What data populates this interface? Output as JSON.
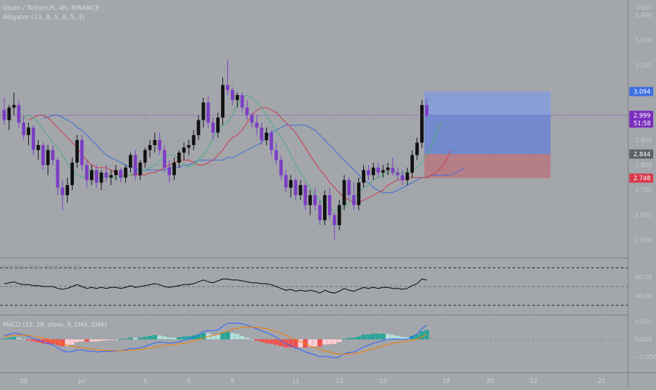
{
  "header": {
    "symbol_line": "Qtum / TetherUS, 4h, BINANCE",
    "indicator_line": "Alligator (13, 8, 5, 8, 5, 3)"
  },
  "price_axis": {
    "currency": "USDT",
    "ticks": [
      {
        "label": "3.400",
        "value": 3.4
      },
      {
        "label": "3.300",
        "value": 3.3
      },
      {
        "label": "3.200",
        "value": 3.2
      },
      {
        "label": "2.900",
        "value": 2.9
      },
      {
        "label": "2.800",
        "value": 2.8
      },
      {
        "label": "2.700",
        "value": 2.7
      },
      {
        "label": "2.600",
        "value": 2.6
      },
      {
        "label": "2.500",
        "value": 2.5
      }
    ],
    "badges": [
      {
        "label": "3.094",
        "value": 3.094,
        "color": "#3d6fe0",
        "countdown": ""
      },
      {
        "label": "2.999",
        "value": 2.999,
        "color": "#7b2fbe",
        "countdown": "51:58"
      },
      {
        "label": "2.844",
        "value": 2.844,
        "color": "#5d6066",
        "countdown": ""
      },
      {
        "label": "2.748",
        "value": 2.748,
        "color": "#d83a4c",
        "countdown": ""
      }
    ]
  },
  "position": {
    "entry": 2.844,
    "target": 3.094,
    "stop": 2.748,
    "profit_color": "#4b72e6",
    "loss_color": "#c8545f"
  },
  "rsi": {
    "title": "RSI (30, RMA, SMA, 14, 2)",
    "ticks": [
      {
        "label": "60.00",
        "value": 60
      },
      {
        "label": "40.00",
        "value": 40
      }
    ],
    "upper": 70,
    "middle": 50,
    "lower": 30
  },
  "macd": {
    "title": "MACD (12, 26, close, 9, EMA, EMA)",
    "ticks": [
      {
        "label": "0.050",
        "value": 0.05
      },
      {
        "label": "0.000",
        "value": 0
      },
      {
        "label": "−0.050",
        "value": -0.05
      }
    ]
  },
  "time_axis": {
    "ticks": [
      {
        "label": "29",
        "bar": 4
      },
      {
        "label": "Jul",
        "bar": 16
      },
      {
        "label": "4",
        "bar": 29
      },
      {
        "label": "6",
        "bar": 38
      },
      {
        "label": "8",
        "bar": 47
      },
      {
        "label": "11",
        "bar": 60
      },
      {
        "label": "13",
        "bar": 69
      },
      {
        "label": "15",
        "bar": 78
      },
      {
        "label": "18",
        "bar": 91
      },
      {
        "label": "20",
        "bar": 100
      },
      {
        "label": "22",
        "bar": 109
      },
      {
        "label": "25",
        "bar": 123
      }
    ]
  },
  "chart_data": {
    "type": "candlestick",
    "title": "Qtum / TetherUS, 4h, BINANCE",
    "ylim": [
      2.43,
      3.46
    ],
    "colors": {
      "up": "#111111",
      "down": "#7b3fc4",
      "jaw": "#3a6fd8",
      "teeth": "#d03a4a",
      "lips": "#4caf7a",
      "rsi": "#000000",
      "macd": "#2962ff",
      "signal": "#f57c00",
      "hist_pos": "#26a69a",
      "hist_pos_weak": "#b2dfdb",
      "hist_neg": "#ef5350",
      "hist_neg_weak": "#ffcdd2"
    },
    "candles": [
      [
        3.02,
        3.07,
        2.96,
        2.98
      ],
      [
        2.98,
        3.04,
        2.94,
        3.03
      ],
      [
        3.03,
        3.09,
        3.0,
        3.04
      ],
      [
        3.04,
        3.06,
        2.95,
        2.97
      ],
      [
        2.97,
        3.0,
        2.9,
        2.92
      ],
      [
        2.92,
        2.97,
        2.88,
        2.95
      ],
      [
        2.95,
        2.96,
        2.84,
        2.86
      ],
      [
        2.86,
        2.9,
        2.82,
        2.88
      ],
      [
        2.88,
        2.89,
        2.78,
        2.8
      ],
      [
        2.8,
        2.88,
        2.76,
        2.86
      ],
      [
        2.86,
        2.88,
        2.8,
        2.82
      ],
      [
        2.82,
        2.83,
        2.68,
        2.71
      ],
      [
        2.71,
        2.74,
        2.62,
        2.68
      ],
      [
        2.68,
        2.75,
        2.65,
        2.72
      ],
      [
        2.72,
        2.83,
        2.7,
        2.81
      ],
      [
        2.81,
        2.92,
        2.79,
        2.9
      ],
      [
        2.9,
        2.92,
        2.78,
        2.8
      ],
      [
        2.8,
        2.82,
        2.71,
        2.74
      ],
      [
        2.74,
        2.8,
        2.72,
        2.78
      ],
      [
        2.78,
        2.8,
        2.71,
        2.73
      ],
      [
        2.73,
        2.78,
        2.7,
        2.77
      ],
      [
        2.77,
        2.8,
        2.73,
        2.75
      ],
      [
        2.75,
        2.78,
        2.72,
        2.76
      ],
      [
        2.76,
        2.8,
        2.74,
        2.78
      ],
      [
        2.78,
        2.79,
        2.73,
        2.75
      ],
      [
        2.75,
        2.8,
        2.73,
        2.79
      ],
      [
        2.79,
        2.85,
        2.77,
        2.84
      ],
      [
        2.84,
        2.86,
        2.74,
        2.76
      ],
      [
        2.76,
        2.82,
        2.74,
        2.81
      ],
      [
        2.81,
        2.87,
        2.79,
        2.86
      ],
      [
        2.86,
        2.9,
        2.83,
        2.88
      ],
      [
        2.88,
        2.93,
        2.85,
        2.9
      ],
      [
        2.9,
        2.93,
        2.84,
        2.86
      ],
      [
        2.86,
        2.88,
        2.77,
        2.79
      ],
      [
        2.79,
        2.82,
        2.73,
        2.76
      ],
      [
        2.76,
        2.83,
        2.74,
        2.81
      ],
      [
        2.81,
        2.86,
        2.79,
        2.85
      ],
      [
        2.85,
        2.89,
        2.82,
        2.87
      ],
      [
        2.87,
        2.9,
        2.84,
        2.88
      ],
      [
        2.88,
        2.94,
        2.86,
        2.92
      ],
      [
        2.92,
        3.0,
        2.9,
        2.98
      ],
      [
        2.98,
        3.07,
        2.95,
        3.05
      ],
      [
        3.05,
        3.08,
        2.95,
        2.97
      ],
      [
        2.97,
        2.99,
        2.9,
        2.93
      ],
      [
        2.93,
        3.01,
        2.91,
        2.99
      ],
      [
        2.99,
        3.15,
        2.96,
        3.12
      ],
      [
        3.12,
        3.22,
        3.08,
        3.1
      ],
      [
        3.1,
        3.11,
        3.04,
        3.06
      ],
      [
        3.06,
        3.09,
        3.03,
        3.08
      ],
      [
        3.08,
        3.09,
        3.01,
        3.03
      ],
      [
        3.03,
        3.06,
        2.98,
        3.0
      ],
      [
        3.0,
        3.01,
        2.95,
        2.97
      ],
      [
        2.97,
        3.0,
        2.92,
        2.95
      ],
      [
        2.95,
        2.97,
        2.88,
        2.9
      ],
      [
        2.9,
        2.95,
        2.88,
        2.93
      ],
      [
        2.93,
        2.94,
        2.84,
        2.86
      ],
      [
        2.86,
        2.89,
        2.8,
        2.82
      ],
      [
        2.82,
        2.84,
        2.74,
        2.76
      ],
      [
        2.76,
        2.78,
        2.69,
        2.71
      ],
      [
        2.71,
        2.76,
        2.67,
        2.74
      ],
      [
        2.74,
        2.75,
        2.66,
        2.68
      ],
      [
        2.68,
        2.74,
        2.66,
        2.72
      ],
      [
        2.72,
        2.73,
        2.62,
        2.64
      ],
      [
        2.64,
        2.7,
        2.6,
        2.68
      ],
      [
        2.68,
        2.71,
        2.62,
        2.64
      ],
      [
        2.64,
        2.66,
        2.56,
        2.58
      ],
      [
        2.58,
        2.7,
        2.56,
        2.68
      ],
      [
        2.68,
        2.71,
        2.58,
        2.6
      ],
      [
        2.6,
        2.61,
        2.5,
        2.56
      ],
      [
        2.56,
        2.66,
        2.54,
        2.64
      ],
      [
        2.64,
        2.76,
        2.62,
        2.74
      ],
      [
        2.74,
        2.75,
        2.66,
        2.68
      ],
      [
        2.68,
        2.73,
        2.62,
        2.64
      ],
      [
        2.64,
        2.75,
        2.62,
        2.73
      ],
      [
        2.73,
        2.8,
        2.71,
        2.78
      ],
      [
        2.78,
        2.8,
        2.74,
        2.76
      ],
      [
        2.76,
        2.81,
        2.74,
        2.79
      ],
      [
        2.79,
        2.81,
        2.75,
        2.77
      ],
      [
        2.77,
        2.8,
        2.75,
        2.78
      ],
      [
        2.78,
        2.81,
        2.76,
        2.79
      ],
      [
        2.79,
        2.83,
        2.76,
        2.77
      ],
      [
        2.77,
        2.79,
        2.74,
        2.76
      ],
      [
        2.76,
        2.78,
        2.72,
        2.74
      ],
      [
        2.74,
        2.79,
        2.72,
        2.77
      ],
      [
        2.77,
        2.86,
        2.75,
        2.84
      ],
      [
        2.84,
        2.91,
        2.82,
        2.89
      ],
      [
        2.89,
        3.06,
        2.87,
        3.04
      ],
      [
        3.04,
        3.07,
        2.99,
        2.999
      ]
    ],
    "jaw": [
      2.99,
      2.99,
      3.0,
      3.0,
      2.99,
      2.98,
      2.97,
      2.95,
      2.94,
      2.92,
      2.9,
      2.88,
      2.86,
      2.84,
      2.83,
      2.82,
      2.81,
      2.8,
      2.79,
      2.79,
      2.78,
      2.78,
      2.78,
      2.78,
      2.78,
      2.78,
      2.79,
      2.79,
      2.79,
      2.8,
      2.8,
      2.81,
      2.82,
      2.82,
      2.82,
      2.82,
      2.82,
      2.82,
      2.83,
      2.83,
      2.84,
      2.85,
      2.86,
      2.87,
      2.88,
      2.89,
      2.91,
      2.93,
      2.94,
      2.95,
      2.96,
      2.96,
      2.96,
      2.96,
      2.96,
      2.95,
      2.94,
      2.92,
      2.9,
      2.88,
      2.86,
      2.84,
      2.82,
      2.8,
      2.78,
      2.76,
      2.74,
      2.73,
      2.71,
      2.7,
      2.69,
      2.69,
      2.69,
      2.7,
      2.71,
      2.72,
      2.73,
      2.74,
      2.75,
      2.75,
      2.76,
      2.76,
      2.76,
      2.76,
      2.76,
      2.77,
      2.78,
      2.79
    ],
    "teeth": [
      2.98,
      2.99,
      3.0,
      3.0,
      2.99,
      2.97,
      2.95,
      2.93,
      2.91,
      2.89,
      2.87,
      2.84,
      2.82,
      2.8,
      2.79,
      2.79,
      2.79,
      2.78,
      2.77,
      2.76,
      2.76,
      2.76,
      2.76,
      2.76,
      2.76,
      2.77,
      2.77,
      2.78,
      2.79,
      2.8,
      2.81,
      2.82,
      2.82,
      2.82,
      2.81,
      2.8,
      2.8,
      2.81,
      2.82,
      2.84,
      2.86,
      2.89,
      2.91,
      2.92,
      2.94,
      2.97,
      3.0,
      3.02,
      3.03,
      3.03,
      3.02,
      3.01,
      2.99,
      2.97,
      2.95,
      2.93,
      2.9,
      2.87,
      2.84,
      2.81,
      2.78,
      2.76,
      2.73,
      2.71,
      2.69,
      2.67,
      2.66,
      2.65,
      2.65,
      2.66,
      2.67,
      2.68,
      2.69,
      2.7,
      2.72,
      2.73,
      2.74,
      2.74,
      2.75,
      2.75,
      2.75,
      2.75,
      2.75,
      2.76,
      2.77,
      2.79,
      2.82,
      2.86
    ],
    "lips": [
      2.97,
      2.99,
      3.0,
      2.99,
      2.97,
      2.94,
      2.92,
      2.89,
      2.87,
      2.84,
      2.81,
      2.78,
      2.76,
      2.75,
      2.76,
      2.77,
      2.77,
      2.76,
      2.75,
      2.75,
      2.75,
      2.75,
      2.76,
      2.76,
      2.77,
      2.78,
      2.78,
      2.79,
      2.8,
      2.82,
      2.83,
      2.84,
      2.84,
      2.82,
      2.8,
      2.79,
      2.8,
      2.82,
      2.84,
      2.87,
      2.91,
      2.94,
      2.96,
      2.97,
      3.0,
      3.04,
      3.07,
      3.08,
      3.07,
      3.05,
      3.03,
      3.0,
      2.97,
      2.94,
      2.91,
      2.88,
      2.84,
      2.8,
      2.77,
      2.74,
      2.71,
      2.68,
      2.66,
      2.64,
      2.62,
      2.62,
      2.62,
      2.63,
      2.65,
      2.67,
      2.69,
      2.71,
      2.72,
      2.74,
      2.75,
      2.76,
      2.77,
      2.77,
      2.77,
      2.77,
      2.77,
      2.78,
      2.79,
      2.81,
      2.84,
      2.88,
      2.93,
      2.97
    ],
    "rsi_values": [
      53,
      54,
      55,
      53,
      52,
      52,
      51,
      51,
      50,
      50,
      50,
      48,
      47,
      48,
      50,
      52,
      50,
      48,
      49,
      48,
      49,
      48,
      49,
      49,
      48,
      49,
      51,
      49,
      50,
      51,
      52,
      53,
      52,
      50,
      49,
      50,
      51,
      52,
      52,
      53,
      55,
      57,
      55,
      54,
      56,
      58,
      58,
      57,
      57,
      56,
      55,
      54,
      54,
      53,
      53,
      52,
      50,
      48,
      46,
      47,
      45,
      46,
      45,
      46,
      45,
      43,
      46,
      44,
      43,
      45,
      48,
      46,
      45,
      47,
      49,
      48,
      49,
      48,
      49,
      49,
      48,
      48,
      47,
      48,
      51,
      53,
      58,
      57
    ],
    "macd_line": [
      0.01,
      0.014,
      0.018,
      0.016,
      0.012,
      0.008,
      0.003,
      -0.002,
      -0.008,
      -0.012,
      -0.016,
      -0.024,
      -0.032,
      -0.036,
      -0.035,
      -0.03,
      -0.03,
      -0.033,
      -0.034,
      -0.036,
      -0.035,
      -0.035,
      -0.034,
      -0.033,
      -0.032,
      -0.03,
      -0.026,
      -0.026,
      -0.024,
      -0.02,
      -0.015,
      -0.01,
      -0.008,
      -0.009,
      -0.011,
      -0.01,
      -0.007,
      -0.003,
      0.001,
      0.006,
      0.013,
      0.022,
      0.025,
      0.024,
      0.027,
      0.037,
      0.045,
      0.046,
      0.046,
      0.044,
      0.04,
      0.035,
      0.03,
      0.024,
      0.019,
      0.013,
      0.006,
      -0.003,
      -0.012,
      -0.018,
      -0.025,
      -0.029,
      -0.036,
      -0.04,
      -0.044,
      -0.05,
      -0.048,
      -0.05,
      -0.053,
      -0.05,
      -0.041,
      -0.037,
      -0.036,
      -0.03,
      -0.022,
      -0.017,
      -0.011,
      -0.007,
      -0.003,
      0.0,
      0.001,
      0.001,
      0.0,
      0.001,
      0.007,
      0.015,
      0.03,
      0.04
    ],
    "signal_line": [
      0.008,
      0.009,
      0.011,
      0.012,
      0.012,
      0.011,
      0.009,
      0.007,
      0.004,
      0.001,
      -0.003,
      -0.007,
      -0.012,
      -0.017,
      -0.02,
      -0.022,
      -0.024,
      -0.026,
      -0.028,
      -0.03,
      -0.031,
      -0.032,
      -0.032,
      -0.032,
      -0.032,
      -0.032,
      -0.031,
      -0.03,
      -0.029,
      -0.027,
      -0.025,
      -0.022,
      -0.019,
      -0.017,
      -0.016,
      -0.015,
      -0.013,
      -0.011,
      -0.008,
      -0.005,
      -0.001,
      0.004,
      0.008,
      0.011,
      0.014,
      0.018,
      0.024,
      0.028,
      0.031,
      0.034,
      0.035,
      0.035,
      0.034,
      0.032,
      0.03,
      0.026,
      0.022,
      0.017,
      0.011,
      0.005,
      -0.001,
      -0.007,
      -0.013,
      -0.019,
      -0.024,
      -0.029,
      -0.033,
      -0.036,
      -0.04,
      -0.042,
      -0.042,
      -0.041,
      -0.04,
      -0.038,
      -0.035,
      -0.031,
      -0.027,
      -0.023,
      -0.019,
      -0.015,
      -0.012,
      -0.009,
      -0.007,
      -0.005,
      -0.003,
      0.001,
      0.007,
      0.014
    ]
  }
}
